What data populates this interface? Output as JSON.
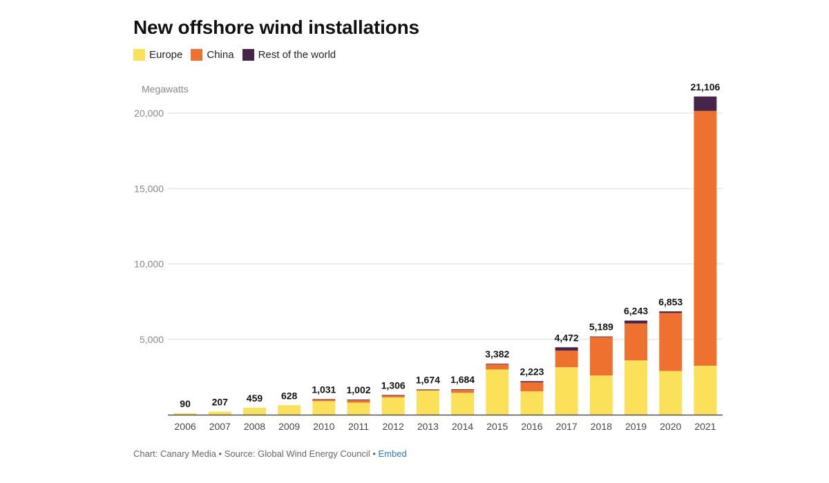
{
  "chart_data": {
    "type": "bar",
    "stacked": true,
    "title": "New offshore wind installations",
    "ylabel": "Megawatts",
    "xlabel": "",
    "ylim": [
      0,
      20000
    ],
    "yticks": [
      5000,
      10000,
      15000,
      20000
    ],
    "ytick_labels": [
      "5,000",
      "10,000",
      "15,000",
      "20,000"
    ],
    "gridlines": true,
    "legend_position": "top-left",
    "categories": [
      "2006",
      "2007",
      "2008",
      "2009",
      "2010",
      "2011",
      "2012",
      "2013",
      "2014",
      "2015",
      "2016",
      "2017",
      "2018",
      "2019",
      "2020",
      "2021"
    ],
    "series": [
      {
        "name": "Europe",
        "color": "#fbe15a",
        "values": [
          90,
          207,
          459,
          628,
          900,
          800,
          1150,
          1600,
          1450,
          3000,
          1550,
          3150,
          2600,
          3600,
          2900,
          3250
        ]
      },
      {
        "name": "China",
        "color": "#ee7130",
        "values": [
          0,
          0,
          0,
          0,
          110,
          180,
          140,
          50,
          200,
          350,
          600,
          1100,
          2550,
          2450,
          3850,
          16900
        ]
      },
      {
        "name": "Rest of the world",
        "color": "#472449",
        "values": [
          0,
          0,
          0,
          0,
          21,
          22,
          16,
          24,
          34,
          32,
          73,
          222,
          39,
          193,
          103,
          956
        ]
      }
    ],
    "totals": [
      90,
      207,
      459,
      628,
      1031,
      1002,
      1306,
      1674,
      1684,
      3382,
      2223,
      4472,
      5189,
      6243,
      6853,
      21106
    ],
    "total_labels": [
      "90",
      "207",
      "459",
      "628",
      "1,031",
      "1,002",
      "1,306",
      "1,674",
      "1,684",
      "3,382",
      "2,223",
      "4,472",
      "5,189",
      "6,243",
      "6,853",
      "21,106"
    ]
  },
  "footer": {
    "credit": "Chart: Canary Media • Source: Global Wind Energy Council • ",
    "embed": "Embed"
  }
}
